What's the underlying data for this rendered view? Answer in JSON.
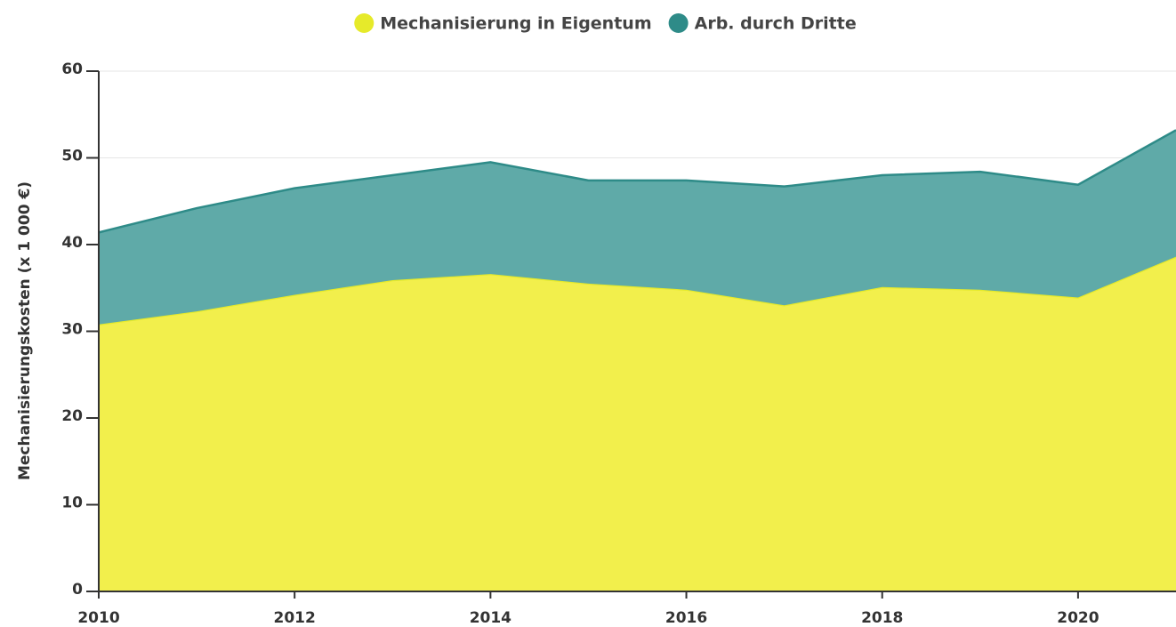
{
  "chart_data": {
    "type": "stacked_area",
    "y_label": "Mechanisierungskosten (x 1 000 €)",
    "x": [
      2010,
      2011,
      2012,
      2013,
      2014,
      2015,
      2016,
      2017,
      2018,
      2019,
      2020,
      2021
    ],
    "series": [
      {
        "name": "Mechanisierung in Eigentum",
        "color": "#f2ef4c",
        "line_color": "#e6ea2a",
        "values": [
          30.8,
          32.3,
          34.2,
          35.9,
          36.6,
          35.5,
          34.8,
          33.0,
          35.1,
          34.8,
          33.9,
          38.6
        ]
      },
      {
        "name": "Arb. durch Dritte",
        "color": "#5faaa8",
        "line_color": "#2e8b88",
        "values": [
          10.6,
          11.9,
          12.3,
          12.1,
          12.9,
          11.9,
          12.6,
          13.7,
          12.9,
          13.6,
          13.0,
          14.6
        ]
      }
    ],
    "xlim": [
      2010,
      2021
    ],
    "xticks": [
      2010,
      2012,
      2014,
      2016,
      2018,
      2020
    ],
    "ylim": [
      0,
      60
    ],
    "yticks": [
      0,
      10,
      20,
      30,
      40,
      50,
      60
    ],
    "grid": true
  }
}
